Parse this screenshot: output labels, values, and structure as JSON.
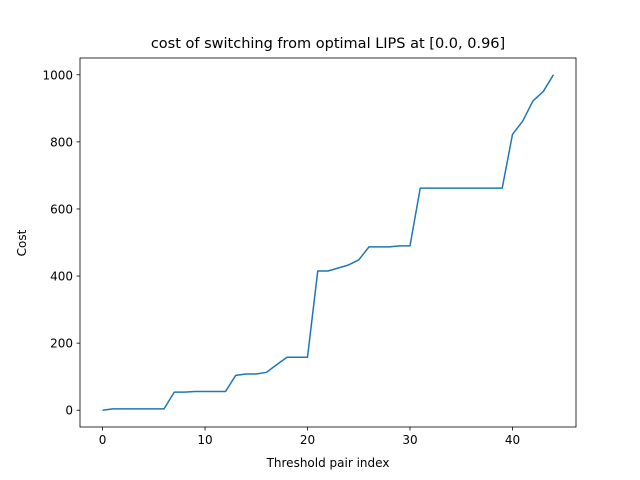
{
  "chart_data": {
    "type": "line",
    "title": "cost of switching from optimal LIPS at [0.0, 0.96]",
    "xlabel": "Threshold pair index",
    "ylabel": "Cost",
    "xlim": [
      -2.2,
      46.2
    ],
    "ylim": [
      -50,
      1050
    ],
    "xticks": [
      0,
      10,
      20,
      30,
      40
    ],
    "yticks": [
      0,
      200,
      400,
      600,
      800,
      1000
    ],
    "grid": false,
    "series": [
      {
        "color": "#1f77b4",
        "x": [
          0,
          1,
          2,
          3,
          4,
          5,
          6,
          7,
          8,
          9,
          10,
          11,
          12,
          13,
          14,
          15,
          16,
          17,
          18,
          19,
          20,
          21,
          22,
          23,
          24,
          25,
          26,
          27,
          28,
          29,
          30,
          31,
          32,
          33,
          34,
          35,
          36,
          37,
          38,
          39,
          40,
          41,
          42,
          43,
          44
        ],
        "y": [
          0,
          4,
          4,
          4,
          4,
          4,
          4,
          54,
          54,
          56,
          56,
          56,
          56,
          104,
          108,
          108,
          113,
          136,
          158,
          158,
          158,
          415,
          415,
          424,
          433,
          448,
          487,
          487,
          487,
          490,
          490,
          662,
          662,
          662,
          662,
          662,
          662,
          662,
          662,
          662,
          822,
          862,
          922,
          950,
          1000
        ]
      }
    ]
  }
}
